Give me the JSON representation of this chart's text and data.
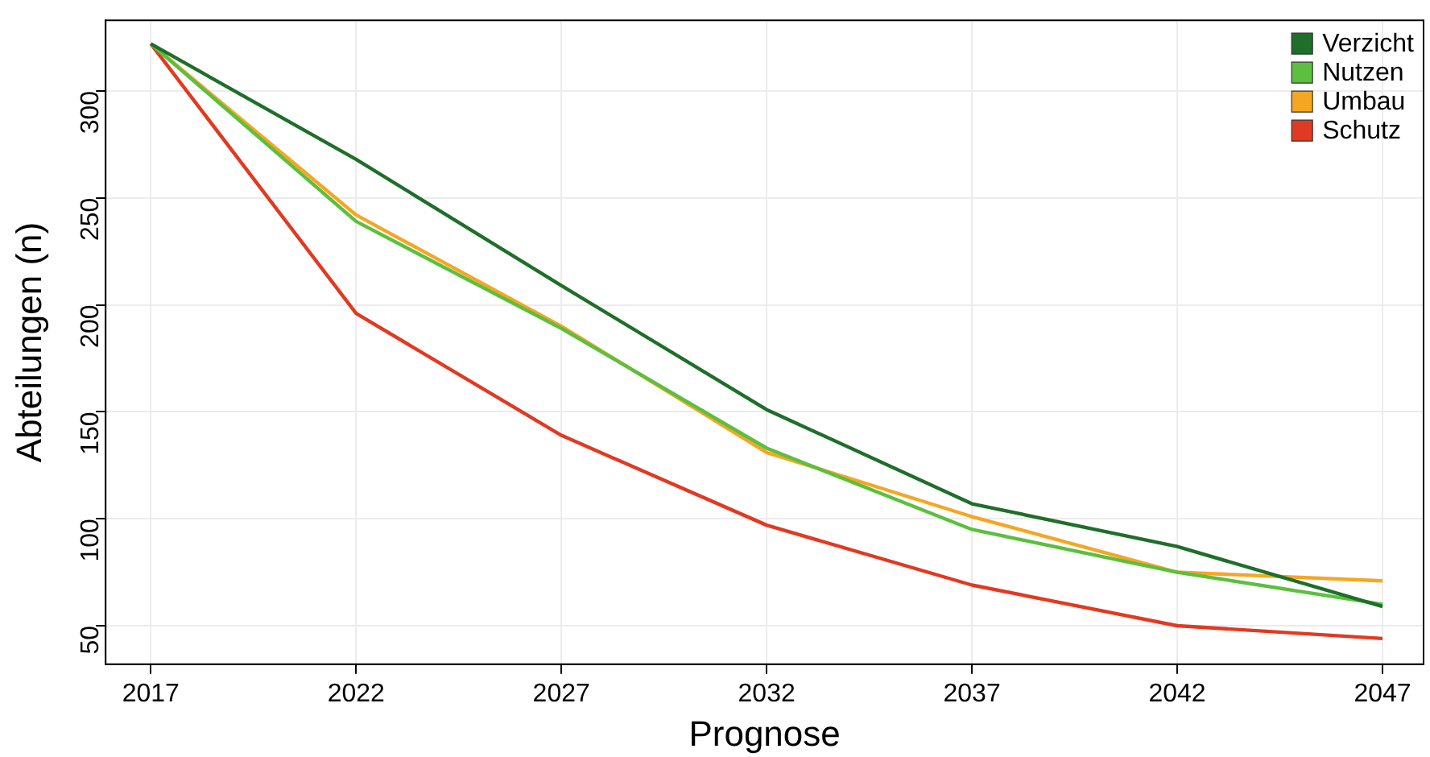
{
  "chart_data": {
    "type": "line",
    "xlabel": "Prognose",
    "ylabel": "Abteilungen (n)",
    "x": [
      2017,
      2022,
      2027,
      2032,
      2037,
      2042,
      2047
    ],
    "xlim": [
      2015.9,
      2048
    ],
    "xticks": [
      2017,
      2022,
      2027,
      2032,
      2037,
      2042,
      2047
    ],
    "ylim": [
      32,
      333
    ],
    "yticks": [
      50,
      100,
      150,
      200,
      250,
      300
    ],
    "grid": true,
    "legend": "top right",
    "marker": "none",
    "line_style": "solid",
    "series": [
      {
        "name": "Verzicht",
        "color": "#1f6e2a",
        "values": [
          322,
          268,
          209,
          151,
          107,
          87,
          59
        ]
      },
      {
        "name": "Nutzen",
        "color": "#5cbf3f",
        "values": [
          322,
          239,
          189,
          133,
          95,
          75,
          60
        ]
      },
      {
        "name": "Umbau",
        "color": "#f5a623",
        "values": [
          322,
          242,
          190,
          131,
          101,
          75,
          71
        ]
      },
      {
        "name": "Schutz",
        "color": "#e03a22",
        "values": [
          322,
          196,
          139,
          97,
          69,
          50,
          44
        ]
      }
    ]
  }
}
